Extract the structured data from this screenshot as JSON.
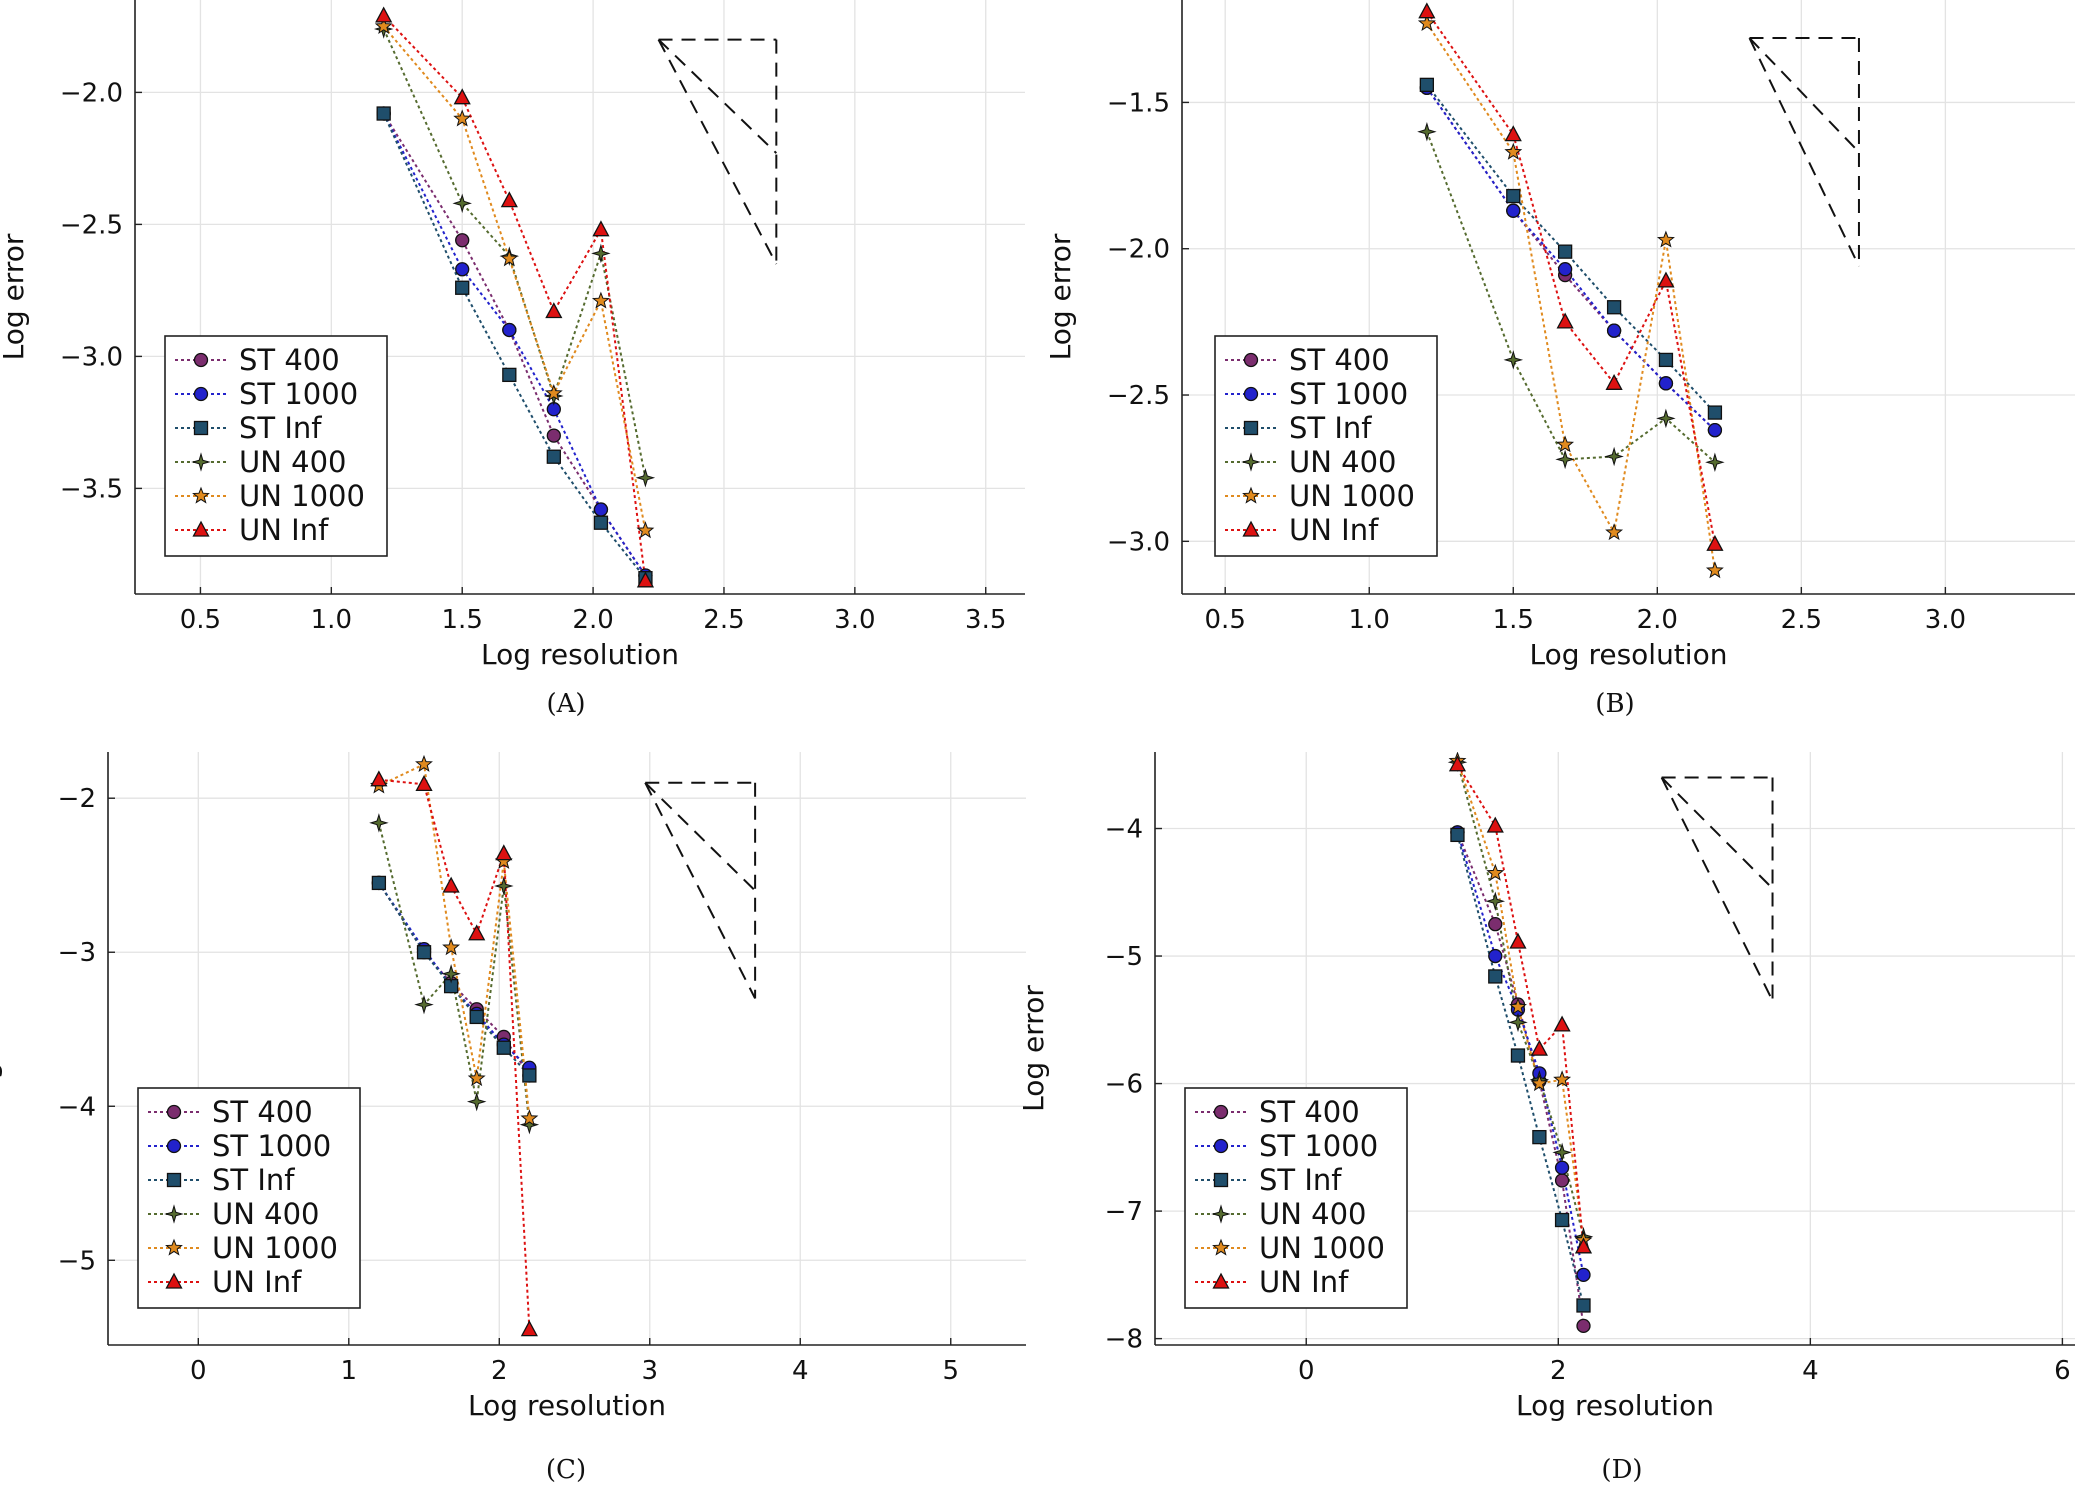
{
  "chart_data": [
    {
      "type": "line",
      "caption": "(A)",
      "xlabel": "Log resolution",
      "ylabel": "Log error",
      "xlim": [
        0.25,
        3.65
      ],
      "ylim": [
        -3.9,
        -1.65
      ],
      "xticks": [
        0.5,
        1.0,
        1.5,
        2.0,
        2.5,
        3.0,
        3.5
      ],
      "yticks": [
        -3.5,
        -3.0,
        -2.5,
        -2.0
      ],
      "grid": true,
      "legend_position": "bottom-left",
      "triangle": {
        "x1": 2.25,
        "x2": 2.7,
        "y_top": -1.8,
        "y_mid": -2.23,
        "y_low": -2.65
      },
      "series": [
        {
          "name": "ST 400",
          "color": "#7b2d6e",
          "marker": "circle",
          "x": [
            1.2,
            1.5,
            1.68,
            1.85,
            2.03,
            2.2
          ],
          "y": [
            -2.08,
            -2.56,
            -2.9,
            -3.3,
            -3.58,
            -3.83
          ]
        },
        {
          "name": "ST 1000",
          "color": "#2222cc",
          "marker": "circle",
          "x": [
            1.2,
            1.5,
            1.68,
            1.85,
            2.03,
            2.2
          ],
          "y": [
            -2.08,
            -2.67,
            -2.9,
            -3.2,
            -3.58,
            -3.83
          ]
        },
        {
          "name": "ST Inf",
          "color": "#1f4e6b",
          "marker": "square",
          "x": [
            1.2,
            1.5,
            1.68,
            1.85,
            2.03,
            2.2
          ],
          "y": [
            -2.08,
            -2.74,
            -3.07,
            -3.38,
            -3.63,
            -3.84
          ]
        },
        {
          "name": "UN 400",
          "color": "#556b2f",
          "marker": "diamond",
          "x": [
            1.2,
            1.5,
            1.68,
            1.85,
            2.03,
            2.2
          ],
          "y": [
            -1.76,
            -2.42,
            -2.62,
            -3.15,
            -2.61,
            -3.46
          ]
        },
        {
          "name": "UN 1000",
          "color": "#e08a1e",
          "marker": "star",
          "x": [
            1.2,
            1.5,
            1.68,
            1.85,
            2.03,
            2.2
          ],
          "y": [
            -1.75,
            -2.1,
            -2.63,
            -3.14,
            -2.79,
            -3.66
          ]
        },
        {
          "name": "UN Inf",
          "color": "#dd1111",
          "marker": "triangle",
          "x": [
            1.2,
            1.5,
            1.68,
            1.85,
            2.03,
            2.2
          ],
          "y": [
            -1.71,
            -2.02,
            -2.41,
            -2.83,
            -2.52,
            -3.85
          ]
        }
      ]
    },
    {
      "type": "line",
      "caption": "(B)",
      "xlabel": "Log resolution",
      "ylabel": "Log error",
      "xlim": [
        0.35,
        3.45
      ],
      "ylim": [
        -3.18,
        -1.15
      ],
      "xticks": [
        0.5,
        1.0,
        1.5,
        2.0,
        2.5,
        3.0
      ],
      "yticks": [
        -3.0,
        -2.5,
        -2.0,
        -1.5
      ],
      "grid": true,
      "legend_position": "bottom-left",
      "triangle": {
        "x1": 2.32,
        "x2": 2.7,
        "y_top": -1.28,
        "y_mid": -1.67,
        "y_low": -2.06
      },
      "series": [
        {
          "name": "ST 400",
          "color": "#7b2d6e",
          "marker": "circle",
          "x": [
            1.2,
            1.5,
            1.68,
            1.85,
            2.03,
            2.2
          ],
          "y": [
            -1.45,
            -1.87,
            -2.09,
            -2.28,
            -2.46,
            -2.62
          ]
        },
        {
          "name": "ST 1000",
          "color": "#2222cc",
          "marker": "circle",
          "x": [
            1.2,
            1.5,
            1.68,
            1.85,
            2.03,
            2.2
          ],
          "y": [
            -1.45,
            -1.87,
            -2.07,
            -2.28,
            -2.46,
            -2.62
          ]
        },
        {
          "name": "ST Inf",
          "color": "#1f4e6b",
          "marker": "square",
          "x": [
            1.2,
            1.5,
            1.68,
            1.85,
            2.03,
            2.2
          ],
          "y": [
            -1.44,
            -1.82,
            -2.01,
            -2.2,
            -2.38,
            -2.56
          ]
        },
        {
          "name": "UN 400",
          "color": "#556b2f",
          "marker": "diamond",
          "x": [
            1.2,
            1.5,
            1.68,
            1.85,
            2.03,
            2.2
          ],
          "y": [
            -1.6,
            -2.38,
            -2.72,
            -2.71,
            -2.58,
            -2.73
          ]
        },
        {
          "name": "UN 1000",
          "color": "#e08a1e",
          "marker": "star",
          "x": [
            1.2,
            1.5,
            1.68,
            1.85,
            2.03,
            2.2
          ],
          "y": [
            -1.23,
            -1.67,
            -2.67,
            -2.97,
            -1.97,
            -3.1
          ]
        },
        {
          "name": "UN Inf",
          "color": "#dd1111",
          "marker": "triangle",
          "x": [
            1.2,
            1.5,
            1.68,
            1.85,
            2.03,
            2.2
          ],
          "y": [
            -1.19,
            -1.61,
            -2.25,
            -2.46,
            -2.11,
            -3.01
          ]
        }
      ]
    },
    {
      "type": "line",
      "caption": "(C)",
      "xlabel": "Log resolution",
      "ylabel": "Log error",
      "xlim": [
        -0.6,
        5.5
      ],
      "ylim": [
        -5.55,
        -1.7
      ],
      "xticks": [
        0,
        1,
        2,
        3,
        4,
        5
      ],
      "yticks": [
        -5,
        -4,
        -3,
        -2
      ],
      "grid": true,
      "legend_position": "bottom-left",
      "triangle": {
        "x1": 2.97,
        "x2": 3.7,
        "y_top": -1.9,
        "y_mid": -2.6,
        "y_low": -3.3
      },
      "series": [
        {
          "name": "ST 400",
          "color": "#7b2d6e",
          "marker": "circle",
          "x": [
            1.2,
            1.5,
            1.68,
            1.85,
            2.03,
            2.2
          ],
          "y": [
            -2.55,
            -3.0,
            -3.2,
            -3.37,
            -3.55,
            -3.8
          ]
        },
        {
          "name": "ST 1000",
          "color": "#2222cc",
          "marker": "circle",
          "x": [
            1.2,
            1.5,
            1.68,
            1.85,
            2.03,
            2.2
          ],
          "y": [
            -2.55,
            -2.98,
            -3.22,
            -3.4,
            -3.6,
            -3.75
          ]
        },
        {
          "name": "ST Inf",
          "color": "#1f4e6b",
          "marker": "square",
          "x": [
            1.2,
            1.5,
            1.68,
            1.85,
            2.03,
            2.2
          ],
          "y": [
            -2.55,
            -3.0,
            -3.22,
            -3.42,
            -3.62,
            -3.8
          ]
        },
        {
          "name": "UN 400",
          "color": "#556b2f",
          "marker": "diamond",
          "x": [
            1.2,
            1.5,
            1.68,
            1.85,
            2.03,
            2.2
          ],
          "y": [
            -2.16,
            -3.34,
            -3.14,
            -3.97,
            -2.57,
            -4.12
          ]
        },
        {
          "name": "UN 1000",
          "color": "#e08a1e",
          "marker": "star",
          "x": [
            1.2,
            1.5,
            1.68,
            1.85,
            2.03,
            2.2
          ],
          "y": [
            -1.92,
            -1.78,
            -2.97,
            -3.82,
            -2.41,
            -4.08
          ]
        },
        {
          "name": "UN Inf",
          "color": "#dd1111",
          "marker": "triangle",
          "x": [
            1.2,
            1.5,
            1.68,
            1.85,
            2.03,
            2.2
          ],
          "y": [
            -1.88,
            -1.91,
            -2.57,
            -2.88,
            -2.36,
            -5.45
          ]
        }
      ]
    },
    {
      "type": "line",
      "caption": "(D)",
      "xlabel": "Log resolution",
      "ylabel": "Log error",
      "xlim": [
        -1.2,
        6.1
      ],
      "ylim": [
        -8.05,
        -3.4
      ],
      "xticks": [
        0,
        2,
        4,
        6
      ],
      "yticks": [
        -8,
        -7,
        -6,
        -5,
        -4
      ],
      "grid": true,
      "legend_position": "bottom-left",
      "triangle": {
        "x1": 2.82,
        "x2": 3.7,
        "y_top": -3.6,
        "y_mid": -4.47,
        "y_low": -5.35
      },
      "series": [
        {
          "name": "ST 400",
          "color": "#7b2d6e",
          "marker": "circle",
          "x": [
            1.2,
            1.5,
            1.68,
            1.85,
            2.03,
            2.2
          ],
          "y": [
            -4.03,
            -4.75,
            -5.38,
            -5.98,
            -6.76,
            -7.9
          ]
        },
        {
          "name": "ST 1000",
          "color": "#2222cc",
          "marker": "circle",
          "x": [
            1.2,
            1.5,
            1.68,
            1.85,
            2.03,
            2.2
          ],
          "y": [
            -4.03,
            -5.0,
            -5.42,
            -5.92,
            -6.66,
            -7.5
          ]
        },
        {
          "name": "ST Inf",
          "color": "#1f4e6b",
          "marker": "square",
          "x": [
            1.2,
            1.5,
            1.68,
            1.85,
            2.03,
            2.2
          ],
          "y": [
            -4.05,
            -5.16,
            -5.78,
            -6.42,
            -7.07,
            -7.74
          ]
        },
        {
          "name": "UN 400",
          "color": "#556b2f",
          "marker": "diamond",
          "x": [
            1.2,
            1.5,
            1.68,
            1.85,
            2.03,
            2.2
          ],
          "y": [
            -3.48,
            -4.57,
            -5.52,
            -5.97,
            -6.54,
            -7.2
          ]
        },
        {
          "name": "UN 1000",
          "color": "#e08a1e",
          "marker": "star",
          "x": [
            1.2,
            1.5,
            1.68,
            1.85,
            2.03,
            2.2
          ],
          "y": [
            -3.47,
            -4.35,
            -5.4,
            -6.0,
            -5.97,
            -7.23
          ]
        },
        {
          "name": "UN Inf",
          "color": "#dd1111",
          "marker": "triangle",
          "x": [
            1.2,
            1.5,
            1.68,
            1.85,
            2.03,
            2.2
          ],
          "y": [
            -3.5,
            -3.98,
            -4.89,
            -5.73,
            -5.54,
            -7.28
          ]
        }
      ]
    }
  ]
}
